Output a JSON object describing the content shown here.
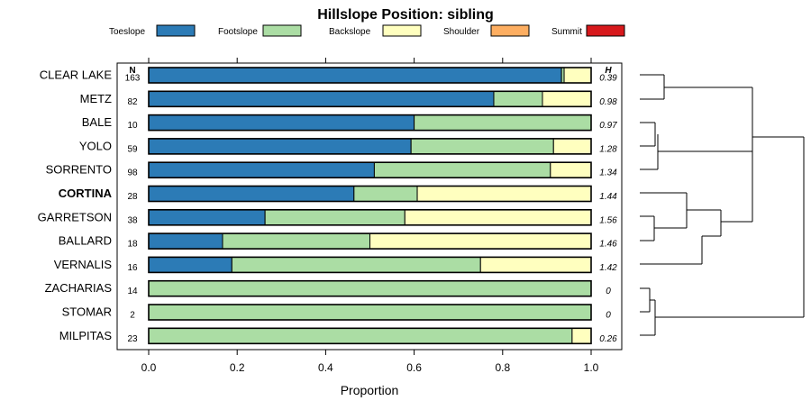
{
  "chart_data": {
    "type": "stacked-bar-horizontal",
    "title": "Hillslope Position: sibling",
    "xlabel": "Proportion",
    "xlim": [
      0,
      1
    ],
    "xticks": [
      "0.0",
      "0.2",
      "0.4",
      "0.6",
      "0.8",
      "1.0"
    ],
    "n_header": "N",
    "h_header": "H",
    "highlight": "CORTINA",
    "legend": [
      {
        "name": "Toeslope",
        "color": "#2c7bb6"
      },
      {
        "name": "Footslope",
        "color": "#abdda4"
      },
      {
        "name": "Backslope",
        "color": "#ffffbf"
      },
      {
        "name": "Shoulder",
        "color": "#fdae61"
      },
      {
        "name": "Summit",
        "color": "#d7191c"
      }
    ],
    "rows": [
      {
        "label": "CLEAR LAKE",
        "n": "163",
        "h": "0.39",
        "values": [
          0.933,
          0.006,
          0.061,
          0,
          0
        ]
      },
      {
        "label": "METZ",
        "n": "82",
        "h": "0.98",
        "values": [
          0.78,
          0.11,
          0.11,
          0,
          0
        ]
      },
      {
        "label": "BALE",
        "n": "10",
        "h": "0.97",
        "values": [
          0.6,
          0.4,
          0,
          0,
          0
        ]
      },
      {
        "label": "YOLO",
        "n": "59",
        "h": "1.28",
        "values": [
          0.593,
          0.322,
          0.085,
          0,
          0
        ]
      },
      {
        "label": "SORRENTO",
        "n": "98",
        "h": "1.34",
        "values": [
          0.51,
          0.398,
          0.092,
          0,
          0
        ]
      },
      {
        "label": "CORTINA",
        "n": "28",
        "h": "1.44",
        "values": [
          0.464,
          0.143,
          0.393,
          0,
          0
        ]
      },
      {
        "label": "GARRETSON",
        "n": "38",
        "h": "1.56",
        "values": [
          0.263,
          0.316,
          0.421,
          0,
          0
        ]
      },
      {
        "label": "BALLARD",
        "n": "18",
        "h": "1.46",
        "values": [
          0.167,
          0.333,
          0.5,
          0,
          0
        ]
      },
      {
        "label": "VERNALIS",
        "n": "16",
        "h": "1.42",
        "values": [
          0.188,
          0.562,
          0.25,
          0,
          0
        ]
      },
      {
        "label": "ZACHARIAS",
        "n": "14",
        "h": "0",
        "values": [
          0,
          1.0,
          0,
          0,
          0
        ]
      },
      {
        "label": "STOMAR",
        "n": "2",
        "h": "0",
        "values": [
          0,
          1.0,
          0,
          0,
          0
        ]
      },
      {
        "label": "MILPITAS",
        "n": "23",
        "h": "0.26",
        "values": [
          0,
          0.957,
          0.043,
          0,
          0
        ]
      }
    ]
  }
}
